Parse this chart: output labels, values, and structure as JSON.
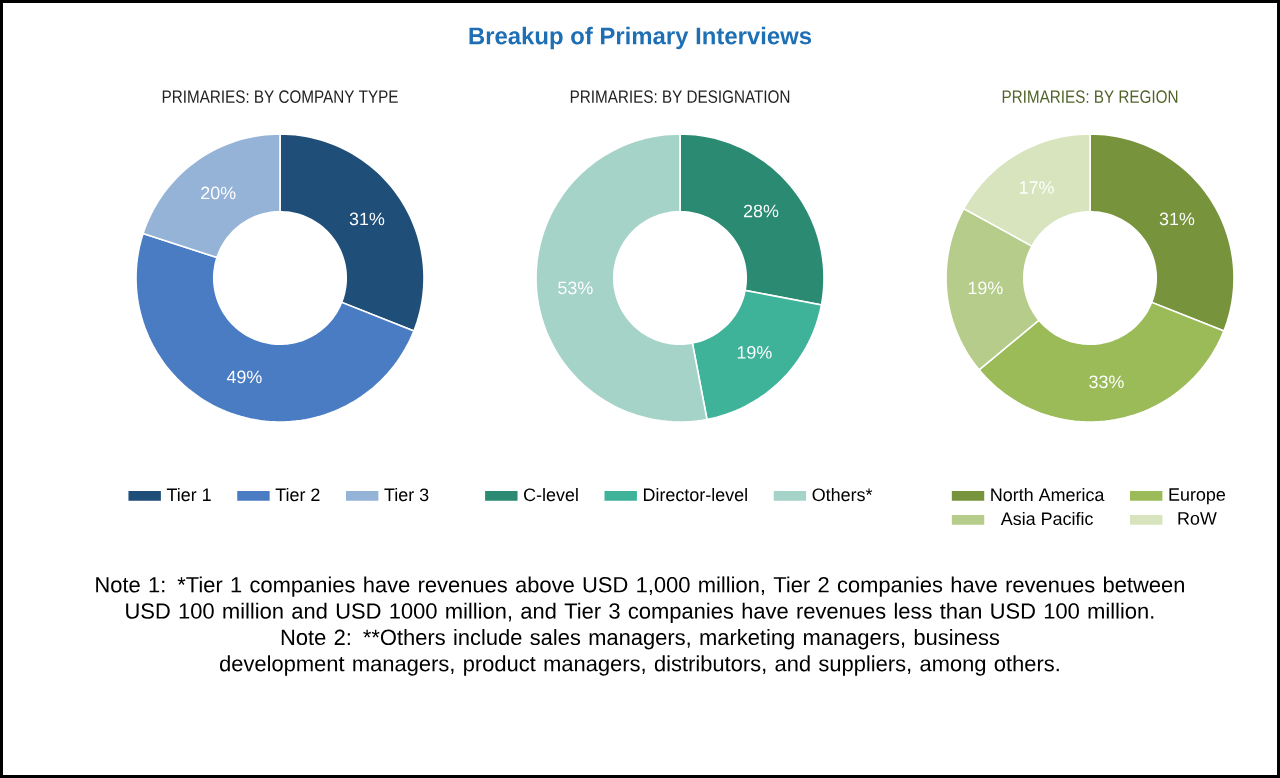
{
  "chart_data": [
    {
      "type": "other",
      "title": "Breakup of Primary Interviews",
      "annotations": [
        "Note 1: *Tier 1 companies have revenues above USD 1,000 million, Tier 2 companies have revenues between USD 100 million and USD 1000 million, and Tier 3 companies have revenues less than USD 100 million.",
        "Note 2: **Others include sales managers, marketing managers, business development managers, product managers, distributors, and suppliers, among others."
      ]
    },
    {
      "type": "donut",
      "title": "PRIMARIES: BY COMPANY TYPE",
      "categories": [
        "Tier 1",
        "Tier 2",
        "Tier 3"
      ],
      "values": [
        31,
        49,
        20
      ],
      "value_labels": [
        "31%",
        "49%",
        "20%"
      ],
      "colors": [
        "#1f4e79",
        "#4a7cc4",
        "#95b3d7"
      ],
      "legend": "bottom"
    },
    {
      "type": "donut",
      "title": "PRIMARIES: BY DESIGNATION",
      "categories": [
        "C-level",
        "Director-level",
        "Others*"
      ],
      "values": [
        28,
        19,
        53
      ],
      "value_labels": [
        "28%",
        "19%",
        "53%"
      ],
      "colors": [
        "#2a8a72",
        "#3fb39a",
        "#a6d3c8"
      ],
      "legend": "bottom"
    },
    {
      "type": "donut",
      "title": "PRIMARIES: BY REGION",
      "categories": [
        "North America",
        "Europe",
        "Asia Pacific",
        "RoW"
      ],
      "values": [
        31,
        33,
        19,
        17
      ],
      "value_labels": [
        "31%",
        "33%",
        "19%",
        "17%"
      ],
      "colors": [
        "#77933c",
        "#9bbb59",
        "#b5cc8a",
        "#d7e4bd"
      ],
      "legend": "bottom"
    }
  ]
}
